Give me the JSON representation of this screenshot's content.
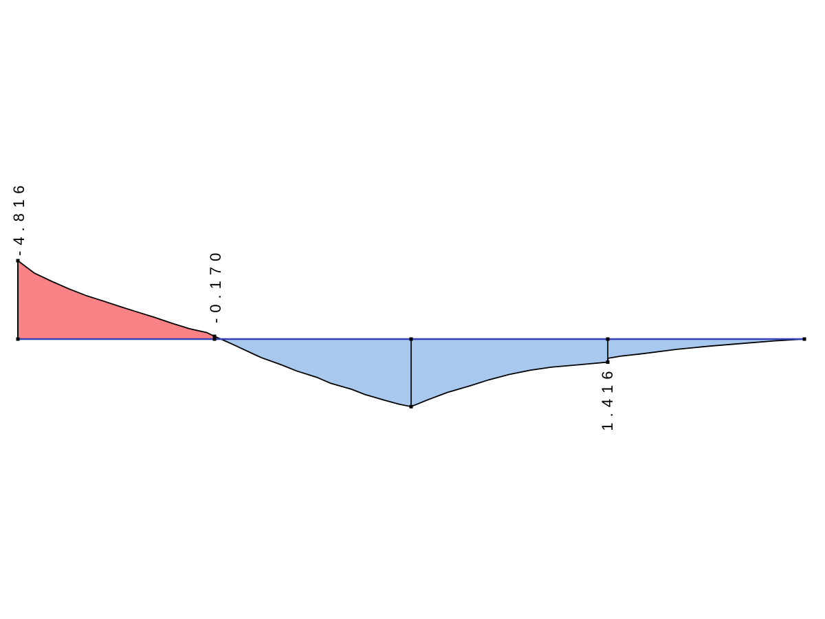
{
  "page": {
    "background": "#ffffff"
  },
  "chart_data": {
    "type": "area",
    "title": "",
    "xlabel": "",
    "ylabel": "",
    "description": "internal force (bending moment) diagram along a horizontal member; negative ordinates drawn above the axis in red, positive ordinates drawn below the axis in blue",
    "x_range": [
      0,
      1
    ],
    "baseline_value": 0,
    "colors": {
      "negative_fill": "#f98287",
      "positive_fill": "#a8c8ee",
      "outline": "#000000",
      "axis": "#3540b4",
      "label_text": "#000000",
      "node_marker": "#000000"
    },
    "curve": [
      {
        "x": 0.0,
        "v": -4.816
      },
      {
        "x": 0.021,
        "v": -4.05
      },
      {
        "x": 0.043,
        "v": -3.55
      },
      {
        "x": 0.065,
        "v": -3.08
      },
      {
        "x": 0.087,
        "v": -2.67
      },
      {
        "x": 0.109,
        "v": -2.33
      },
      {
        "x": 0.131,
        "v": -1.98
      },
      {
        "x": 0.152,
        "v": -1.66
      },
      {
        "x": 0.174,
        "v": -1.33
      },
      {
        "x": 0.196,
        "v": -0.97
      },
      {
        "x": 0.218,
        "v": -0.64
      },
      {
        "x": 0.24,
        "v": -0.4
      },
      {
        "x": 0.25,
        "v": -0.17
      },
      {
        "x": 0.258,
        "v": 0
      },
      {
        "x": 0.272,
        "v": 0.3
      },
      {
        "x": 0.301,
        "v": 0.95
      },
      {
        "x": 0.31,
        "v": 1.15
      },
      {
        "x": 0.336,
        "v": 1.6
      },
      {
        "x": 0.354,
        "v": 1.95
      },
      {
        "x": 0.38,
        "v": 2.35
      },
      {
        "x": 0.398,
        "v": 2.72
      },
      {
        "x": 0.424,
        "v": 3.08
      },
      {
        "x": 0.441,
        "v": 3.4
      },
      {
        "x": 0.468,
        "v": 3.78
      },
      {
        "x": 0.485,
        "v": 4.0
      },
      {
        "x": 0.5,
        "v": 4.15
      },
      {
        "x": 0.52,
        "v": 3.75
      },
      {
        "x": 0.546,
        "v": 3.28
      },
      {
        "x": 0.573,
        "v": 2.9
      },
      {
        "x": 0.599,
        "v": 2.5
      },
      {
        "x": 0.625,
        "v": 2.17
      },
      {
        "x": 0.651,
        "v": 1.92
      },
      {
        "x": 0.678,
        "v": 1.73
      },
      {
        "x": 0.713,
        "v": 1.58
      },
      {
        "x": 0.75,
        "v": 1.416
      },
      {
        "x": 0.7505,
        "v": 1.18
      },
      {
        "x": 0.766,
        "v": 1.05
      },
      {
        "x": 0.794,
        "v": 0.9
      },
      {
        "x": 0.838,
        "v": 0.63
      },
      {
        "x": 0.88,
        "v": 0.43
      },
      {
        "x": 0.923,
        "v": 0.26
      },
      {
        "x": 0.962,
        "v": 0.11
      },
      {
        "x": 1.0,
        "v": 0
      }
    ],
    "nodes": [
      {
        "x": 0.0,
        "v": -4.816
      },
      {
        "x": 0.25,
        "v": -0.17
      },
      {
        "x": 0.5,
        "v": 4.15
      },
      {
        "x": 0.75,
        "v": 1.416
      },
      {
        "x": 1.0,
        "v": 0
      }
    ],
    "value_labels": [
      {
        "text": "-4.816",
        "x": 0.0,
        "v": -4.816,
        "pad": 7
      },
      {
        "text": "-0.170",
        "x": 0.25,
        "v": -0.17,
        "pad": 19
      },
      {
        "text": "1.416",
        "x": 0.75,
        "v": 1.416,
        "pad": 13
      }
    ]
  }
}
